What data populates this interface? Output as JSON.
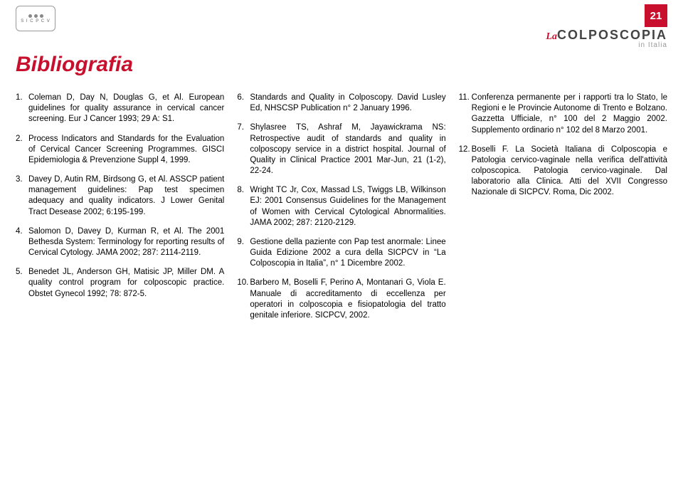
{
  "page_number": "21",
  "logo_left_text": "S I C P C V",
  "magazine": {
    "prefix": "La",
    "main": "COLPOSCOPIA",
    "sub": "in Italia"
  },
  "title": "Bibliografia",
  "columns": [
    [
      {
        "n": "1.",
        "t": "Coleman D, Day N, Douglas G, et Al. European guidelines for quality assurance in cervical cancer screening. Eur J Cancer 1993; 29 A: S1."
      },
      {
        "n": "2.",
        "t": "Process Indicators and Standards for the Evaluation of Cervical Cancer Screening Programmes. GISCI Epidemiologia & Prevenzione Suppl 4, 1999."
      },
      {
        "n": "3.",
        "t": "Davey D, Autin RM, Birdsong G, et Al. ASSCP patient management guidelines: Pap test specimen adequacy and quality indicators. J Lower Genital Tract Desease 2002; 6:195-199."
      },
      {
        "n": "4.",
        "t": "Salomon D, Davey D, Kurman R, et Al. The 2001 Bethesda System: Terminology for reporting results of Cervical Cytology. JAMA 2002; 287: 2114-2119."
      },
      {
        "n": "5.",
        "t": "Benedet JL, Anderson GH, Matisic JP, Miller DM. A quality control program for colposcopic practice. Obstet Gynecol 1992; 78: 872-5."
      }
    ],
    [
      {
        "n": "6.",
        "t": "Standards and Quality in Colposcopy. David Lusley Ed, NHSCSP Publication n° 2 January 1996."
      },
      {
        "n": "7.",
        "t": "Shylasree TS, Ashraf M, Jayawickrama NS: Retrospective audit of standards and quality in colposcopy service in a district hospital. Journal of Quality in Clinical Practice 2001 Mar-Jun, 21 (1-2), 22-24."
      },
      {
        "n": "8.",
        "t": "Wright TC Jr, Cox, Massad LS, Twiggs LB, Wilkinson EJ: 2001 Consensus Guidelines for the Management of Women with Cervical Cytological Abnormalities. JAMA 2002; 287: 2120-2129."
      },
      {
        "n": "9.",
        "t": "Gestione della paziente con Pap test anormale: Linee Guida Edizione 2002 a cura della SICPCV in “La Colposcopia in Italia”, n° 1 Dicembre 2002."
      },
      {
        "n": "10.",
        "t": "Barbero M, Boselli F, Perino A, Montanari G, Viola E. Manuale di accreditamento di eccellenza per operatori in colposcopia e fisiopatologia del tratto genitale inferiore. SICPCV, 2002."
      }
    ],
    [
      {
        "n": "11.",
        "t": "Conferenza permanente per i rapporti tra lo Stato, le Regioni e le Provincie Autonome di Trento e Bolzano. Gazzetta Ufficiale, n° 100 del 2 Maggio 2002. Supplemento ordinario n° 102 del 8 Marzo 2001."
      },
      {
        "n": "12.",
        "t": "Boselli F. La Società Italiana di Colposcopia e Patologia cervico-vaginale nella verifica dell'attività colposcopica. Patologia cervico-vaginale. Dal laboratorio alla Clinica. Atti del XVII Congresso Nazionale di SICPCV. Roma, Dic 2002."
      }
    ]
  ]
}
